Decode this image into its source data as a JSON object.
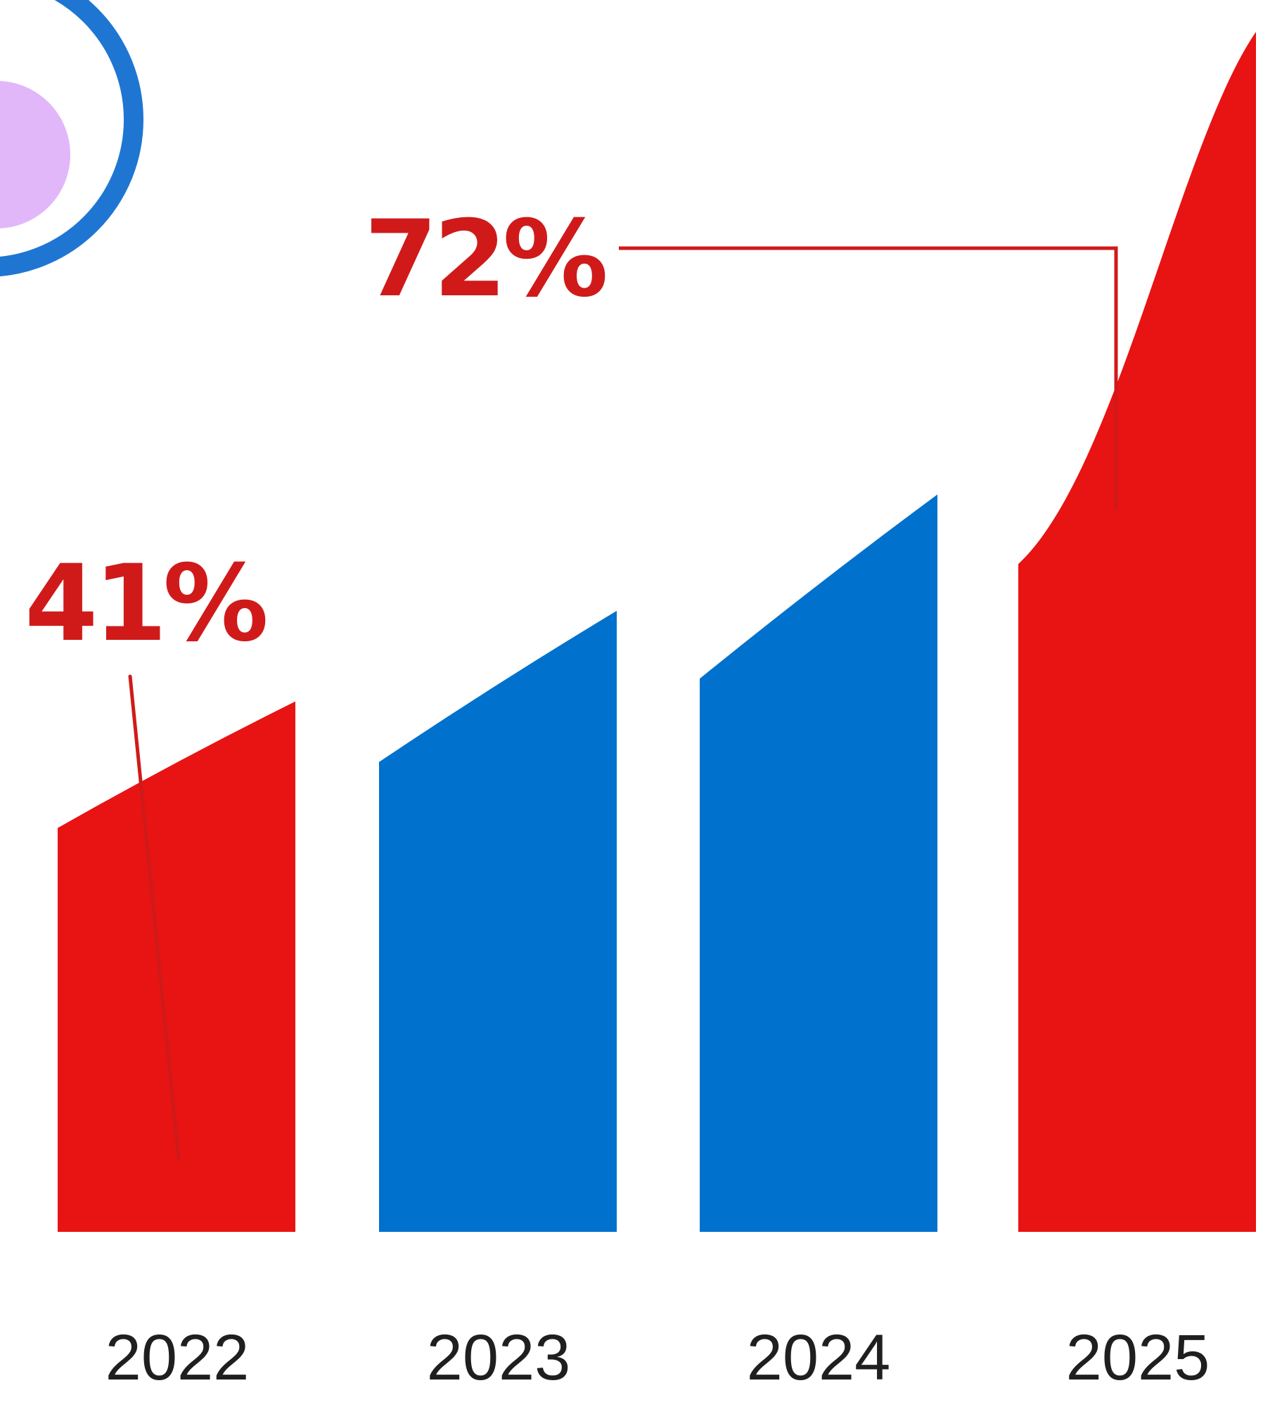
{
  "chart_data": {
    "type": "bar",
    "categories": [
      "2022",
      "2023",
      "2024",
      "2025"
    ],
    "values": [
      41,
      48,
      57,
      72
    ],
    "ylim": [
      0,
      100
    ],
    "xlabel": "",
    "ylabel": "",
    "grid": false,
    "legend": "none",
    "bar_colors": [
      "#e81313",
      "#0071cd",
      "#0071cd",
      "#e81313"
    ],
    "annotations": [
      {
        "text": "41%",
        "category": "2022",
        "color": "#d01a1a"
      },
      {
        "text": "72%",
        "category": "2025",
        "color": "#d01a1a"
      }
    ]
  },
  "decoration": {
    "ring_color": "#1e76d2",
    "blob_color": "#e2b7fa"
  }
}
